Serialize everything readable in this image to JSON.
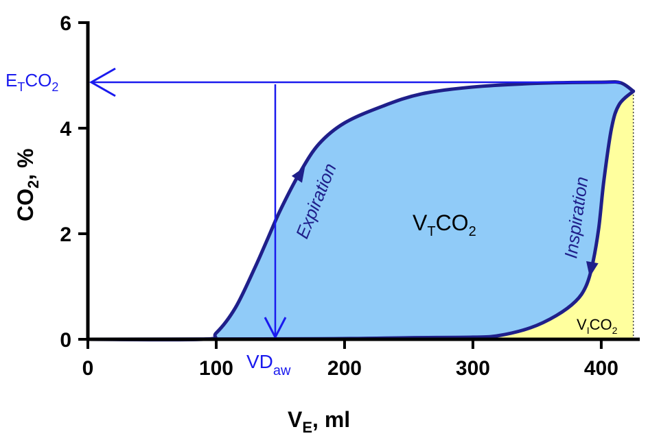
{
  "chart_data": {
    "type": "area",
    "xlabel": {
      "main": "V",
      "sub": "E",
      "rest": ", ml"
    },
    "ylabel": {
      "main": "CO",
      "sub": "2",
      "rest": ", %"
    },
    "xlim": [
      0,
      430
    ],
    "ylim": [
      0,
      6
    ],
    "x_ticks": [
      0,
      100,
      200,
      300,
      400
    ],
    "y_ticks": [
      0,
      2,
      4,
      6
    ],
    "grid": false,
    "expiration_curve": {
      "x": [
        0,
        90,
        100,
        115,
        130,
        140,
        150,
        165,
        180,
        200,
        230,
        260,
        300,
        350,
        400,
        415,
        425
      ],
      "y": [
        0,
        0,
        0.12,
        0.6,
        1.35,
        1.9,
        2.45,
        3.15,
        3.7,
        4.1,
        4.42,
        4.65,
        4.78,
        4.85,
        4.87,
        4.86,
        4.7
      ]
    },
    "inspiration_curve": {
      "x": [
        425,
        414,
        408,
        402,
        398,
        393,
        388,
        380,
        365,
        345,
        320,
        300,
        250,
        180,
        0
      ],
      "y": [
        4.7,
        4.45,
        4.0,
        3.0,
        2.1,
        1.4,
        1.0,
        0.72,
        0.45,
        0.22,
        0.07,
        0.04,
        0.03,
        0.01,
        0
      ]
    },
    "etco2": {
      "value": 4.87,
      "label_main": "E",
      "label_sub": "T",
      "label_rest": "CO",
      "label_sub2": "2"
    },
    "vdaw": {
      "value": 146,
      "label_main": "VD",
      "label_sub": "aw"
    },
    "vtco2_label": {
      "main": "V",
      "sub": "T",
      "rest": "CO",
      "sub2": "2"
    },
    "vico2_label": {
      "main": "V",
      "sub": "I",
      "rest": "CO",
      "sub2": "2"
    },
    "expiration_label": "Expiration",
    "inspiration_label": "Inspiration",
    "colors": {
      "loop_fill": "#90cbf8",
      "inspired_fill": "#ffff9e",
      "curve": "#1f1f8a",
      "marker": "#1a1aee",
      "axis": "#000000"
    }
  }
}
